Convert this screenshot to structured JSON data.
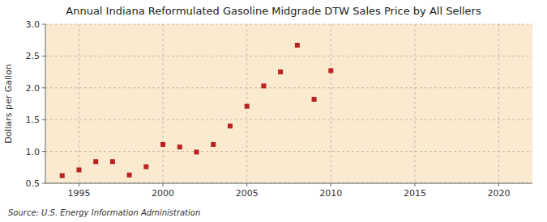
{
  "chart_data": {
    "type": "scatter",
    "title": "Annual Indiana Reformulated Gasoline Midgrade DTW Sales Price by All Sellers",
    "y_label": "Dollars per Gallon",
    "source": "Source: U.S. Energy Information Administration",
    "x": [
      1994,
      1995,
      1996,
      1997,
      1998,
      1999,
      2000,
      2001,
      2002,
      2003,
      2004,
      2005,
      2006,
      2007,
      2008,
      2009,
      2010
    ],
    "values": [
      0.62,
      0.71,
      0.84,
      0.84,
      0.63,
      0.76,
      1.11,
      1.07,
      0.99,
      1.11,
      1.4,
      1.71,
      2.03,
      2.25,
      2.67,
      1.82,
      2.27
    ],
    "xlim": [
      1993,
      2022
    ],
    "ylim": [
      0.5,
      3.0
    ],
    "xticks": [
      1995,
      2000,
      2005,
      2010,
      2015,
      2020
    ],
    "yticks": [
      0.5,
      {
        "value": 1.0,
        "label": "1.0"
      },
      1.5,
      {
        "value": 2.0,
        "label": "2.0"
      },
      2.5,
      {
        "value": 3.0,
        "label": "3.0"
      }
    ],
    "color": "#bb2222",
    "marker": "square",
    "grid": true
  }
}
